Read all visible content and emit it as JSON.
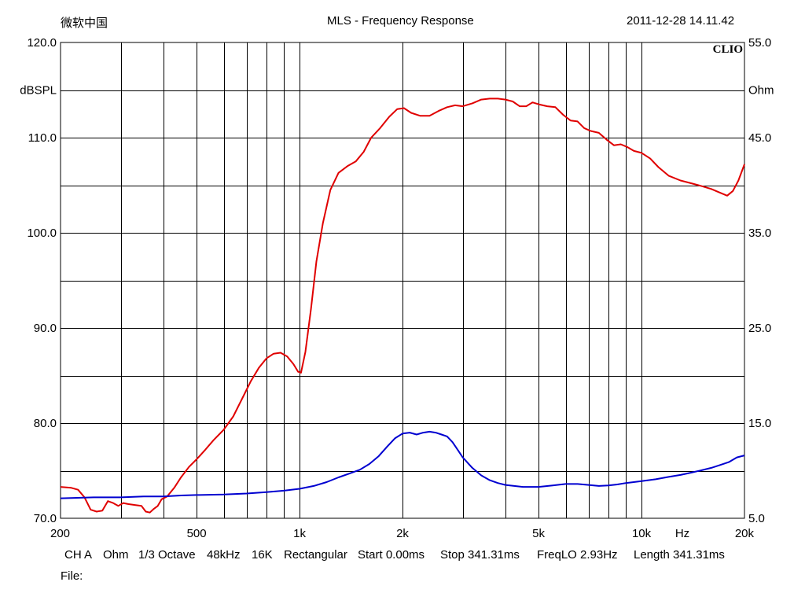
{
  "header": {
    "left": "微软中国",
    "title": "MLS - Frequency Response",
    "timestamp": "2011-12-28 14.11.42"
  },
  "brand": "CLIO",
  "chart_data": {
    "type": "line",
    "title": "MLS - Frequency Response",
    "xscale": "log",
    "xlim": [
      200,
      20000
    ],
    "x_ticks": [
      "200",
      "500",
      "1k",
      "2k",
      "5k",
      "10k",
      "20k"
    ],
    "x_tick_values": [
      200,
      500,
      1000,
      2000,
      5000,
      10000,
      20000
    ],
    "x_unit": "Hz",
    "ylabel": "dBSPL",
    "ylim": [
      70,
      120
    ],
    "y_ticks": [
      "70.0",
      "80.0",
      "90.0",
      "100.0",
      "110.0",
      "120.0"
    ],
    "y2label": "Ohm",
    "y2lim": [
      5,
      55
    ],
    "y2_ticks": [
      "5.0",
      "15.0",
      "25.0",
      "35.0",
      "45.0",
      "55.0"
    ],
    "grid": true,
    "series": [
      {
        "axis": "left",
        "color": "#e00000",
        "points": [
          [
            200,
            73.3
          ],
          [
            215,
            73.2
          ],
          [
            225,
            73.0
          ],
          [
            235,
            72.2
          ],
          [
            245,
            70.9
          ],
          [
            255,
            70.7
          ],
          [
            265,
            70.8
          ],
          [
            275,
            71.8
          ],
          [
            285,
            71.6
          ],
          [
            295,
            71.3
          ],
          [
            305,
            71.6
          ],
          [
            315,
            71.5
          ],
          [
            330,
            71.4
          ],
          [
            345,
            71.3
          ],
          [
            355,
            70.7
          ],
          [
            365,
            70.6
          ],
          [
            375,
            71.0
          ],
          [
            385,
            71.3
          ],
          [
            395,
            72.0
          ],
          [
            410,
            72.3
          ],
          [
            430,
            73.2
          ],
          [
            450,
            74.3
          ],
          [
            475,
            75.4
          ],
          [
            500,
            76.2
          ],
          [
            530,
            77.2
          ],
          [
            560,
            78.2
          ],
          [
            600,
            79.3
          ],
          [
            640,
            80.7
          ],
          [
            680,
            82.6
          ],
          [
            720,
            84.4
          ],
          [
            760,
            85.8
          ],
          [
            800,
            86.8
          ],
          [
            840,
            87.3
          ],
          [
            880,
            87.4
          ],
          [
            920,
            87.0
          ],
          [
            960,
            86.2
          ],
          [
            990,
            85.4
          ],
          [
            1010,
            85.3
          ],
          [
            1040,
            87.5
          ],
          [
            1080,
            92.0
          ],
          [
            1120,
            97.0
          ],
          [
            1170,
            101.0
          ],
          [
            1230,
            104.5
          ],
          [
            1300,
            106.3
          ],
          [
            1380,
            107.0
          ],
          [
            1460,
            107.5
          ],
          [
            1540,
            108.5
          ],
          [
            1620,
            110.0
          ],
          [
            1720,
            111.0
          ],
          [
            1830,
            112.2
          ],
          [
            1930,
            113.0
          ],
          [
            2020,
            113.1
          ],
          [
            2120,
            112.6
          ],
          [
            2250,
            112.3
          ],
          [
            2400,
            112.3
          ],
          [
            2550,
            112.8
          ],
          [
            2700,
            113.2
          ],
          [
            2850,
            113.4
          ],
          [
            3000,
            113.3
          ],
          [
            3200,
            113.6
          ],
          [
            3400,
            114.0
          ],
          [
            3600,
            114.1
          ],
          [
            3800,
            114.1
          ],
          [
            4000,
            114.0
          ],
          [
            4200,
            113.8
          ],
          [
            4400,
            113.3
          ],
          [
            4600,
            113.3
          ],
          [
            4800,
            113.7
          ],
          [
            5000,
            113.5
          ],
          [
            5300,
            113.3
          ],
          [
            5600,
            113.2
          ],
          [
            5900,
            112.4
          ],
          [
            6200,
            111.8
          ],
          [
            6500,
            111.7
          ],
          [
            6800,
            111.0
          ],
          [
            7100,
            110.7
          ],
          [
            7500,
            110.5
          ],
          [
            7900,
            109.8
          ],
          [
            8300,
            109.2
          ],
          [
            8700,
            109.3
          ],
          [
            9100,
            109.0
          ],
          [
            9500,
            108.6
          ],
          [
            10000,
            108.4
          ],
          [
            10600,
            107.8
          ],
          [
            11200,
            106.9
          ],
          [
            12000,
            106.0
          ],
          [
            13000,
            105.5
          ],
          [
            14000,
            105.2
          ],
          [
            15000,
            104.9
          ],
          [
            16000,
            104.6
          ],
          [
            17000,
            104.2
          ],
          [
            17800,
            103.9
          ],
          [
            18500,
            104.4
          ],
          [
            19200,
            105.5
          ],
          [
            20000,
            107.2
          ]
        ]
      },
      {
        "axis": "right",
        "color": "#0000d0",
        "points": [
          [
            200,
            7.1
          ],
          [
            250,
            7.2
          ],
          [
            300,
            7.2
          ],
          [
            350,
            7.3
          ],
          [
            400,
            7.3
          ],
          [
            450,
            7.4
          ],
          [
            500,
            7.45
          ],
          [
            600,
            7.5
          ],
          [
            700,
            7.6
          ],
          [
            800,
            7.75
          ],
          [
            900,
            7.9
          ],
          [
            1000,
            8.1
          ],
          [
            1100,
            8.4
          ],
          [
            1200,
            8.8
          ],
          [
            1300,
            9.3
          ],
          [
            1400,
            9.7
          ],
          [
            1500,
            10.1
          ],
          [
            1600,
            10.7
          ],
          [
            1700,
            11.5
          ],
          [
            1800,
            12.5
          ],
          [
            1900,
            13.4
          ],
          [
            2000,
            13.9
          ],
          [
            2100,
            14.0
          ],
          [
            2200,
            13.8
          ],
          [
            2300,
            14.0
          ],
          [
            2400,
            14.1
          ],
          [
            2500,
            14.0
          ],
          [
            2600,
            13.8
          ],
          [
            2700,
            13.6
          ],
          [
            2800,
            13.0
          ],
          [
            2900,
            12.2
          ],
          [
            3000,
            11.4
          ],
          [
            3200,
            10.3
          ],
          [
            3400,
            9.5
          ],
          [
            3600,
            9.0
          ],
          [
            3800,
            8.7
          ],
          [
            4000,
            8.5
          ],
          [
            4500,
            8.3
          ],
          [
            5000,
            8.3
          ],
          [
            5500,
            8.45
          ],
          [
            6000,
            8.6
          ],
          [
            6500,
            8.6
          ],
          [
            7000,
            8.5
          ],
          [
            7500,
            8.4
          ],
          [
            8000,
            8.45
          ],
          [
            8500,
            8.55
          ],
          [
            9000,
            8.7
          ],
          [
            10000,
            8.9
          ],
          [
            11000,
            9.1
          ],
          [
            12000,
            9.35
          ],
          [
            13000,
            9.55
          ],
          [
            14000,
            9.8
          ],
          [
            15000,
            10.05
          ],
          [
            16000,
            10.3
          ],
          [
            17000,
            10.6
          ],
          [
            18000,
            10.9
          ],
          [
            19000,
            11.4
          ],
          [
            20000,
            11.6
          ]
        ]
      }
    ]
  },
  "footer": {
    "ch": "CH A",
    "unit": "Ohm",
    "octave": "1/3 Octave",
    "rate": "48kHz",
    "size": "16K",
    "window": "Rectangular",
    "start": "Start 0.00ms",
    "stop": "Stop 341.31ms",
    "freqlo": "FreqLO 2.93Hz",
    "length": "Length 341.31ms",
    "file_label": "File:"
  }
}
